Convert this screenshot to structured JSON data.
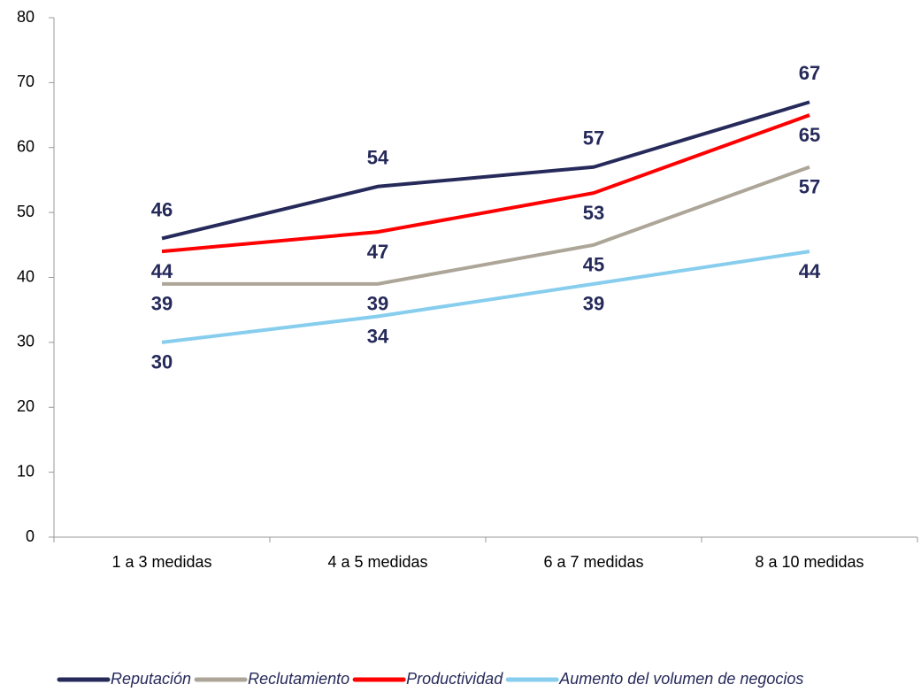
{
  "chart_data": {
    "type": "line",
    "categories": [
      "1 a 3 medidas",
      "4 a 5 medidas",
      "6 a 7 medidas",
      "8 a 10 medidas"
    ],
    "series": [
      {
        "name": "Reputación",
        "color": "#262a5a",
        "values": [
          46,
          54,
          57,
          67
        ]
      },
      {
        "name": "Reclutamiento",
        "color": "#aca598",
        "values": [
          39,
          39,
          45,
          57
        ]
      },
      {
        "name": "Productividad",
        "color": "#ff0000",
        "values": [
          44,
          47,
          53,
          65
        ]
      },
      {
        "name": "Aumento del volumen de negocios",
        "color": "#87cdee",
        "values": [
          30,
          34,
          39,
          44
        ]
      }
    ],
    "ylim": [
      0,
      80
    ],
    "yticks": [
      0,
      10,
      20,
      30,
      40,
      50,
      60,
      70,
      80
    ],
    "grid": false,
    "legend": "bottom"
  }
}
